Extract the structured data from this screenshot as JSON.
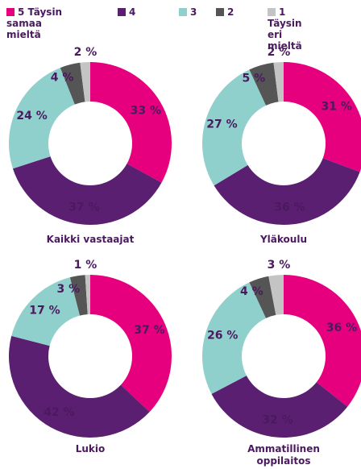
{
  "legend": {
    "categories": [
      "5 Täysin samaa mieltä",
      "4",
      "3",
      "2",
      "1 Täysin eri mieltä"
    ],
    "colors": [
      "#e6007e",
      "#5b1f72",
      "#8fd0cc",
      "#555555",
      "#c4c4c4"
    ]
  },
  "chart_data": [
    {
      "type": "donut",
      "title": "Kaikki vastaajat",
      "values": [
        33,
        37,
        24,
        4,
        2
      ],
      "value_labels": [
        "33 %",
        "37 %",
        "24 %",
        "4 %",
        "2 %"
      ]
    },
    {
      "type": "donut",
      "title": "Yläkoulu",
      "values": [
        31,
        36,
        27,
        5,
        2
      ],
      "value_labels": [
        "31 %",
        "36 %",
        "27 %",
        "5 %",
        "2 %"
      ]
    },
    {
      "type": "donut",
      "title": "Lukio",
      "values": [
        37,
        42,
        17,
        3,
        1
      ],
      "value_labels": [
        "37 %",
        "42 %",
        "17 %",
        "3 %",
        "1 %"
      ]
    },
    {
      "type": "donut",
      "title": "Ammatillinen oppilaitos",
      "values": [
        36,
        32,
        26,
        4,
        3
      ],
      "value_labels": [
        "36 %",
        "32 %",
        "26 %",
        "4 %",
        "3 %"
      ]
    }
  ]
}
